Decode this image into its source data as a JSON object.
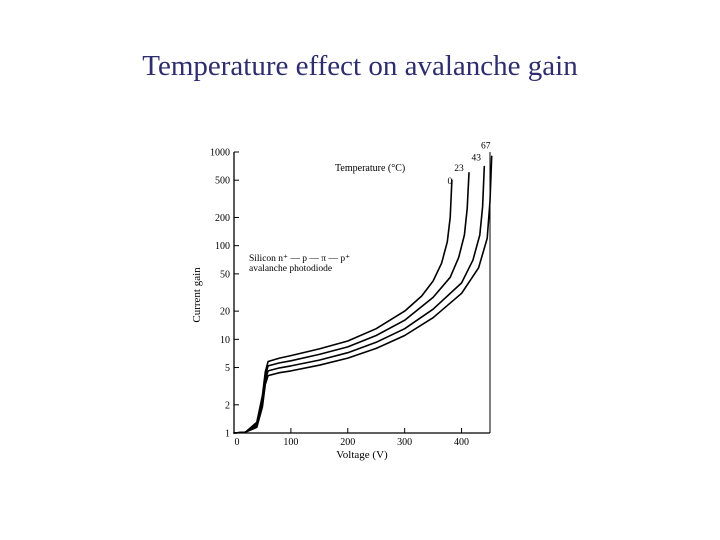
{
  "slide": {
    "title": "Temperature effect on avalanche gain",
    "title_color": "#2e2e6e"
  },
  "chart_data": {
    "type": "line",
    "title": "",
    "xlabel": "Voltage (V)",
    "ylabel": "Current gain",
    "xlim": [
      0,
      450
    ],
    "ylim": [
      1,
      1000
    ],
    "yscale": "log",
    "x_ticks": [
      0,
      100,
      200,
      300,
      400
    ],
    "x_tick_labels": [
      "0",
      "100",
      "200",
      "300",
      "400"
    ],
    "y_ticks": [
      1,
      2,
      5,
      10,
      20,
      50,
      100,
      200,
      500,
      1000
    ],
    "y_tick_labels": [
      "1",
      "2",
      "5",
      "10",
      "20",
      "50",
      "100",
      "200",
      "500",
      "1000"
    ],
    "legend_title": "Temperature (°C)",
    "annotation_lines": [
      "Silicon n⁺ — p — π — p⁺",
      "avalanche photodiode"
    ],
    "grid": false,
    "line_color": "#000000",
    "series": [
      {
        "name": "0",
        "x": [
          0,
          20,
          40,
          50,
          55,
          60,
          80,
          100,
          150,
          200,
          250,
          300,
          330,
          350,
          365,
          375,
          380,
          383
        ],
        "y": [
          1,
          1.02,
          1.3,
          2.5,
          4.5,
          5.8,
          6.3,
          6.7,
          7.9,
          9.6,
          13,
          20,
          29,
          42,
          65,
          110,
          200,
          500
        ]
      },
      {
        "name": "23",
        "x": [
          0,
          20,
          40,
          50,
          55,
          60,
          80,
          100,
          150,
          200,
          250,
          300,
          350,
          380,
          395,
          405,
          410,
          413
        ],
        "y": [
          1,
          1.02,
          1.25,
          2.3,
          4.1,
          5.2,
          5.6,
          5.9,
          6.9,
          8.3,
          11,
          16,
          28,
          46,
          75,
          130,
          250,
          600
        ]
      },
      {
        "name": "43",
        "x": [
          0,
          20,
          40,
          50,
          55,
          60,
          80,
          100,
          150,
          200,
          250,
          300,
          350,
          400,
          420,
          432,
          437,
          440
        ],
        "y": [
          1,
          1.02,
          1.2,
          2.1,
          3.7,
          4.6,
          4.95,
          5.2,
          6.0,
          7.2,
          9.3,
          13,
          21,
          40,
          70,
          130,
          260,
          700
        ]
      },
      {
        "name": "67",
        "x": [
          0,
          20,
          40,
          50,
          55,
          60,
          80,
          100,
          150,
          200,
          250,
          300,
          350,
          400,
          430,
          445,
          450,
          453
        ],
        "y": [
          1,
          1.02,
          1.15,
          1.9,
          3.3,
          4.1,
          4.4,
          4.6,
          5.3,
          6.3,
          8.0,
          11,
          17,
          31,
          58,
          120,
          300,
          900
        ]
      }
    ]
  }
}
